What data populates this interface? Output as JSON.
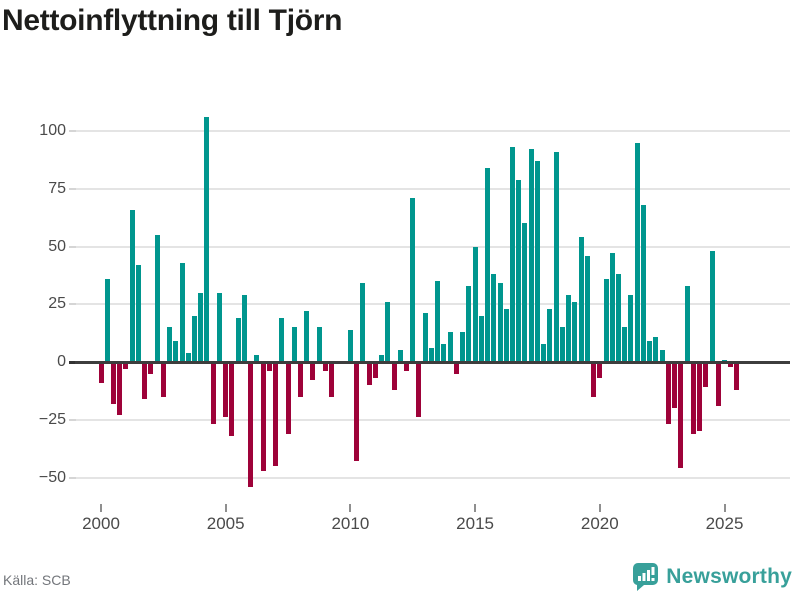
{
  "header": {
    "title": "Nettoinflyttning till Tjörn"
  },
  "footer": {
    "source": "Källa: SCB",
    "brand": "Newsworthy",
    "brand_icon": "bar-chart-speech-bubble-icon"
  },
  "colors": {
    "positive": "#00968e",
    "negative": "#9e0239",
    "title_text": "#1d1d1b",
    "axis_text": "#4a4a4a",
    "grid": "#e4e4e4",
    "zero_line": "#3d3d3d",
    "source_text": "#73767b",
    "brand": "#38a09a"
  },
  "y_axis": {
    "ticks": [
      {
        "value": 100,
        "label": "100"
      },
      {
        "value": 75,
        "label": "75"
      },
      {
        "value": 50,
        "label": "50"
      },
      {
        "value": 25,
        "label": "25"
      },
      {
        "value": 0,
        "label": "0"
      },
      {
        "value": -25,
        "label": "−25"
      },
      {
        "value": -50,
        "label": "−50"
      }
    ]
  },
  "x_axis": {
    "ticks": [
      {
        "year": 2000,
        "label": "2000"
      },
      {
        "year": 2005,
        "label": "2005"
      },
      {
        "year": 2010,
        "label": "2010"
      },
      {
        "year": 2015,
        "label": "2015"
      },
      {
        "year": 2020,
        "label": "2020"
      },
      {
        "year": 2025,
        "label": "2025"
      }
    ]
  },
  "chart_data": {
    "type": "bar",
    "title": "Nettoinflyttning till Tjörn",
    "frequency": "quarterly",
    "start": "2000-Q1",
    "end": "2025-Q3",
    "ylim": [
      -60,
      110
    ],
    "grid": "horizontal",
    "positive_color": "#00968e",
    "negative_color": "#9e0239",
    "values": [
      -9,
      36,
      -18,
      -23,
      -3,
      66,
      42,
      -16,
      -5,
      55,
      -15,
      15,
      9,
      43,
      4,
      20,
      30,
      106,
      -27,
      30,
      -24,
      -32,
      19,
      29,
      -54,
      3,
      -47,
      -4,
      -45,
      19,
      -31,
      15,
      -15,
      22,
      -8,
      15,
      -4,
      -15,
      0,
      0,
      14,
      -43,
      34,
      -10,
      -7,
      3,
      26,
      -12,
      5,
      -4,
      71,
      -24,
      21,
      6,
      35,
      8,
      13,
      -5,
      13,
      33,
      50,
      20,
      84,
      38,
      34,
      23,
      93,
      79,
      60,
      92,
      87,
      8,
      23,
      91,
      15,
      29,
      26,
      54,
      46,
      -15,
      -7,
      36,
      47,
      38,
      15,
      29,
      95,
      68,
      9,
      11,
      5,
      -27,
      -20,
      -46,
      33,
      -31,
      -30,
      -11,
      48,
      -19,
      1,
      -2,
      -12
    ]
  }
}
